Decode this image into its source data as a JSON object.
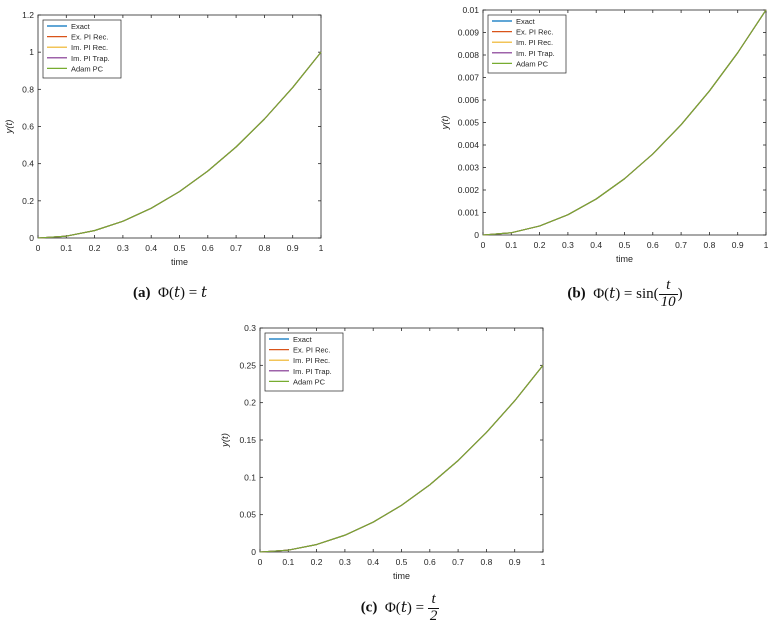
{
  "colors": {
    "Exact": "#0072BD",
    "Ex. PI Rec.": "#D95319",
    "Im. PI Rec.": "#EDB120",
    "Im. PI Trap.": "#7E2F8E",
    "Adam PC": "#77AC30"
  },
  "chart_data": [
    {
      "type": "line",
      "caption": {
        "tag": "(a)",
        "text": "Φ(t) = t"
      },
      "xlabel": "time",
      "ylabel": "y(t)",
      "xlim": [
        0,
        1
      ],
      "ylim": [
        0,
        1.2
      ],
      "xticks": [
        "0",
        "0.1",
        "0.2",
        "0.3",
        "0.4",
        "0.5",
        "0.6",
        "0.7",
        "0.8",
        "0.9",
        "1"
      ],
      "yticks": [
        "0",
        "0.2",
        "0.4",
        "0.6",
        "0.8",
        "1",
        "1.2"
      ],
      "legend_position": "top-left",
      "x": [
        0,
        0.1,
        0.2,
        0.3,
        0.4,
        0.5,
        0.6,
        0.7,
        0.8,
        0.9,
        1.0
      ],
      "series": [
        {
          "name": "Exact",
          "values": [
            0,
            0.01,
            0.04,
            0.09,
            0.16,
            0.25,
            0.36,
            0.49,
            0.64,
            0.81,
            1.0
          ]
        },
        {
          "name": "Ex. PI Rec.",
          "values": [
            0,
            0.01,
            0.04,
            0.09,
            0.16,
            0.25,
            0.36,
            0.49,
            0.64,
            0.81,
            1.0
          ]
        },
        {
          "name": "Im. PI Rec.",
          "values": [
            0,
            0.01,
            0.04,
            0.09,
            0.16,
            0.25,
            0.36,
            0.49,
            0.64,
            0.81,
            1.0
          ]
        },
        {
          "name": "Im. PI Trap.",
          "values": [
            0,
            0.01,
            0.04,
            0.09,
            0.16,
            0.25,
            0.36,
            0.49,
            0.64,
            0.81,
            1.0
          ]
        },
        {
          "name": "Adam PC",
          "values": [
            0,
            0.01,
            0.04,
            0.09,
            0.16,
            0.25,
            0.36,
            0.49,
            0.64,
            0.81,
            1.0
          ]
        }
      ]
    },
    {
      "type": "line",
      "caption": {
        "tag": "(b)",
        "text": "Φ(t) = sin(t/10)"
      },
      "xlabel": "time",
      "ylabel": "y(t)",
      "xlim": [
        0,
        1
      ],
      "ylim": [
        0,
        0.01
      ],
      "xticks": [
        "0",
        "0.1",
        "0.2",
        "0.3",
        "0.4",
        "0.5",
        "0.6",
        "0.7",
        "0.8",
        "0.9",
        "1"
      ],
      "yticks": [
        "0",
        "0.001",
        "0.002",
        "0.003",
        "0.004",
        "0.005",
        "0.006",
        "0.007",
        "0.008",
        "0.009",
        "0.01"
      ],
      "legend_position": "top-left",
      "x": [
        0,
        0.1,
        0.2,
        0.3,
        0.4,
        0.5,
        0.6,
        0.7,
        0.8,
        0.9,
        1.0
      ],
      "series": [
        {
          "name": "Exact",
          "values": [
            0,
            0.0001,
            0.0004,
            0.0009,
            0.0016,
            0.0025,
            0.0036,
            0.0049,
            0.0064,
            0.0081,
            0.01
          ]
        },
        {
          "name": "Ex. PI Rec.",
          "values": [
            0,
            0.0001,
            0.0004,
            0.0009,
            0.0016,
            0.0025,
            0.0036,
            0.0049,
            0.0064,
            0.0081,
            0.01
          ]
        },
        {
          "name": "Im. PI Rec.",
          "values": [
            0,
            0.0001,
            0.0004,
            0.0009,
            0.0016,
            0.0025,
            0.0036,
            0.0049,
            0.0064,
            0.0081,
            0.01
          ]
        },
        {
          "name": "Im. PI Trap.",
          "values": [
            0,
            0.0001,
            0.0004,
            0.0009,
            0.0016,
            0.0025,
            0.0036,
            0.0049,
            0.0064,
            0.0081,
            0.01
          ]
        },
        {
          "name": "Adam PC",
          "values": [
            0,
            0.0001,
            0.0004,
            0.0009,
            0.0016,
            0.0025,
            0.0036,
            0.0049,
            0.0064,
            0.0081,
            0.01
          ]
        }
      ]
    },
    {
      "type": "line",
      "caption": {
        "tag": "(c)",
        "text": "Φ(t) = t/2"
      },
      "xlabel": "time",
      "ylabel": "y(t)",
      "xlim": [
        0,
        1
      ],
      "ylim": [
        0,
        0.3
      ],
      "xticks": [
        "0",
        "0.1",
        "0.2",
        "0.3",
        "0.4",
        "0.5",
        "0.6",
        "0.7",
        "0.8",
        "0.9",
        "1"
      ],
      "yticks": [
        "0",
        "0.05",
        "0.1",
        "0.15",
        "0.2",
        "0.25",
        "0.3"
      ],
      "legend_position": "top-left",
      "x": [
        0,
        0.1,
        0.2,
        0.3,
        0.4,
        0.5,
        0.6,
        0.7,
        0.8,
        0.9,
        1.0
      ],
      "series": [
        {
          "name": "Exact",
          "values": [
            0,
            0.0025,
            0.01,
            0.0225,
            0.04,
            0.0625,
            0.09,
            0.1225,
            0.16,
            0.2025,
            0.25
          ]
        },
        {
          "name": "Ex. PI Rec.",
          "values": [
            0,
            0.0025,
            0.01,
            0.0225,
            0.04,
            0.0625,
            0.09,
            0.1225,
            0.16,
            0.2025,
            0.25
          ]
        },
        {
          "name": "Im. PI Rec.",
          "values": [
            0,
            0.0025,
            0.01,
            0.0225,
            0.04,
            0.0625,
            0.09,
            0.1225,
            0.16,
            0.2025,
            0.25
          ]
        },
        {
          "name": "Im. PI Trap.",
          "values": [
            0,
            0.0025,
            0.01,
            0.0225,
            0.04,
            0.0625,
            0.09,
            0.1225,
            0.16,
            0.2025,
            0.25
          ]
        },
        {
          "name": "Adam PC",
          "values": [
            0,
            0.0025,
            0.01,
            0.0225,
            0.04,
            0.0625,
            0.09,
            0.1225,
            0.16,
            0.2025,
            0.25
          ]
        }
      ]
    }
  ]
}
